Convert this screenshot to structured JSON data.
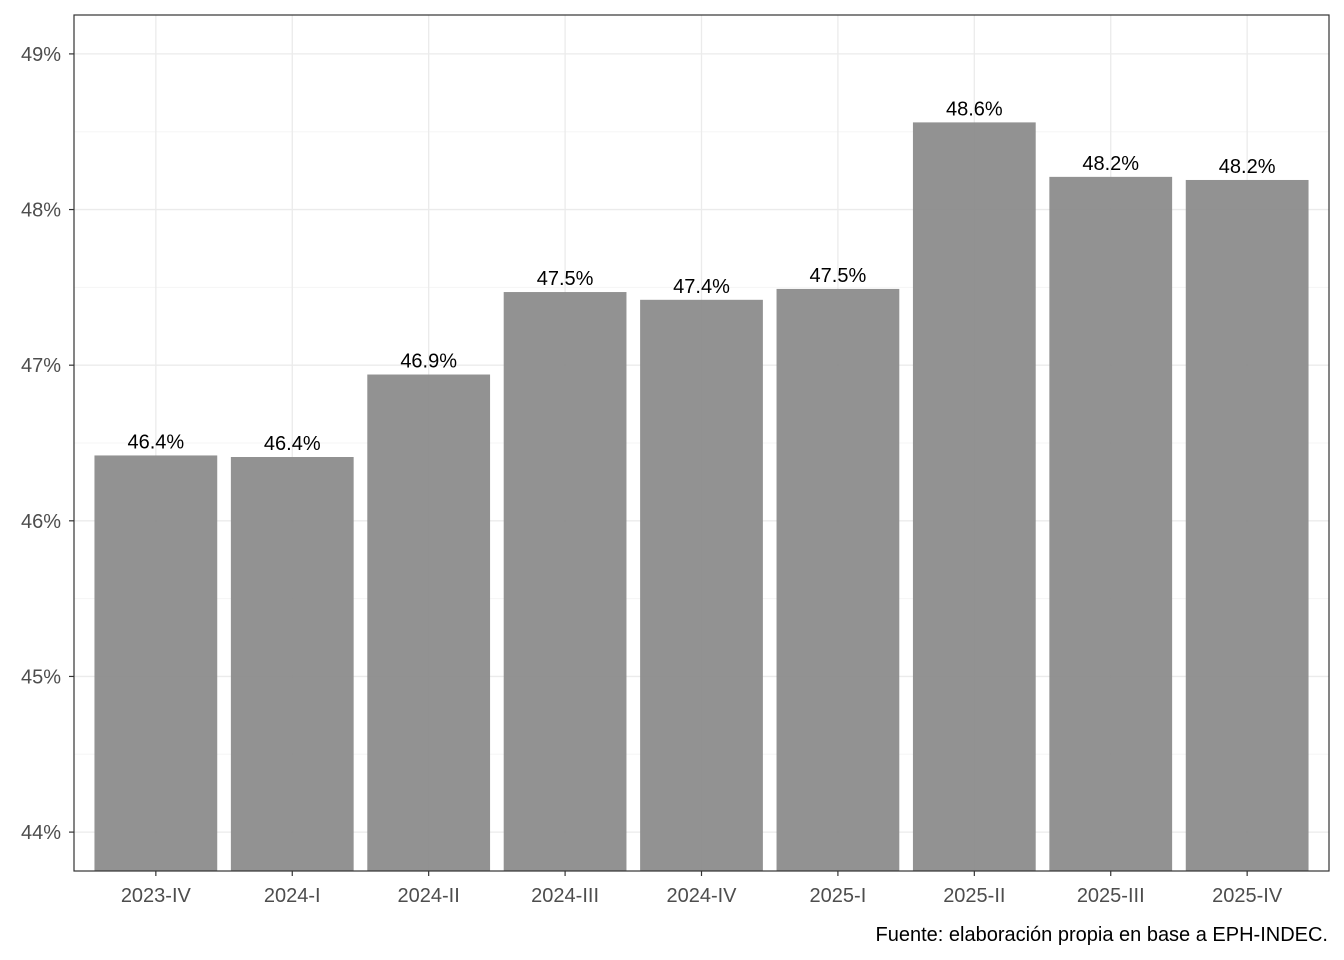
{
  "chart_data": {
    "type": "bar",
    "title": "",
    "xlabel": "",
    "ylabel": "",
    "categories": [
      "2023-IV",
      "2024-I",
      "2024-II",
      "2024-III",
      "2024-IV",
      "2025-I",
      "2025-II",
      "2025-III",
      "2025-IV"
    ],
    "values": [
      46.42,
      46.41,
      46.94,
      47.47,
      47.42,
      47.49,
      48.56,
      48.21,
      48.19
    ],
    "data_labels": [
      "46.4%",
      "46.4%",
      "46.9%",
      "47.5%",
      "47.4%",
      "47.5%",
      "48.6%",
      "48.2%",
      "48.2%"
    ],
    "ylim": [
      43.75,
      49.25
    ],
    "yticks": [
      44,
      45,
      46,
      47,
      48,
      49
    ],
    "ytick_labels": [
      "44%",
      "45%",
      "46%",
      "47%",
      "48%",
      "49%"
    ],
    "grid": true,
    "legend": "none",
    "caption": "Fuente: elaboración propia en base a EPH-INDEC.",
    "colors": {
      "bar": "#8c8c8c",
      "grid_major": "#ebebeb",
      "grid_minor": "#f5f5f5",
      "panel_border": "#333333"
    }
  }
}
